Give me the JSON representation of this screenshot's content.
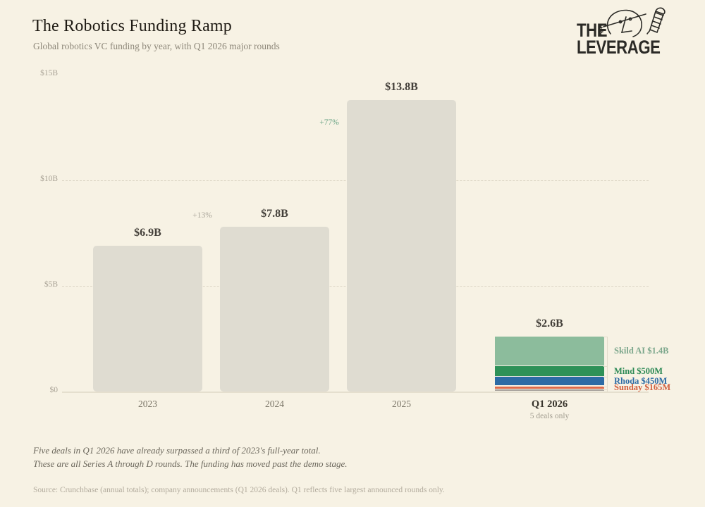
{
  "header": {
    "title": "The Robotics Funding Ramp",
    "subtitle": "Global robotics VC funding by year, with Q1 2026 major rounds"
  },
  "logo": {
    "line1": "THE",
    "line2": "LEVERAGE"
  },
  "chart_data": {
    "type": "bar",
    "title": "The Robotics Funding Ramp",
    "subtitle": "Global robotics VC funding by year, with Q1 2026 major rounds",
    "unit": "USD billions",
    "ylim": [
      0,
      15
    ],
    "grid": "dashed horizontal at $5B and $10B only",
    "yticks": [
      {
        "value": 0,
        "label": "$0"
      },
      {
        "value": 5,
        "label": "$5B"
      },
      {
        "value": 10,
        "label": "$10B"
      },
      {
        "value": 15,
        "label": "$15B"
      }
    ],
    "gridline_values": [
      5,
      10
    ],
    "categories": [
      "2023",
      "2024",
      "2025",
      "Q1 2026"
    ],
    "bars": [
      {
        "category": "2023",
        "total": 6.9,
        "value_label": "$6.9B",
        "color": "#dfdcd1"
      },
      {
        "category": "2024",
        "total": 7.8,
        "value_label": "$7.8B",
        "color": "#dfdcd1",
        "pct_change": "+13%",
        "pct_color": "#aaa59a"
      },
      {
        "category": "2025",
        "total": 13.8,
        "value_label": "$13.8B",
        "color": "#dfdcd1",
        "pct_change": "+77%",
        "pct_color": "#68a384"
      },
      {
        "category": "Q1 2026",
        "total": 2.6,
        "value_label": "$2.6B",
        "sublabel": "5 deals only",
        "stacked": true,
        "segments": [
          {
            "name": "Skild AI",
            "value": 1.4,
            "label": "Skild AI $1.4B",
            "color": "#8cbc9c",
            "label_color": "#7ca78c"
          },
          {
            "name": "Mind",
            "value": 0.5,
            "label": "Mind $500M",
            "color": "#2e9158",
            "label_color": "#2e8a56"
          },
          {
            "name": "Rhoda",
            "value": 0.45,
            "label": "Rhoda $450M",
            "color": "#2c6ba5",
            "label_color": "#2f6da5"
          },
          {
            "name": "Sunday",
            "value": 0.165,
            "label": "Sunday $165M",
            "color": "#dd6b4a",
            "label_color": "#d2603f"
          },
          {
            "name": "fifth deal (unlabeled)",
            "value": 0.085,
            "label": "",
            "color": "#a6a29c",
            "label_color": "#a6a29c"
          }
        ]
      }
    ]
  },
  "footer": {
    "note_line1": "Five deals in Q1 2026 have already surpassed a third of 2023's full-year total.",
    "note_line2": "These are all Series A through D rounds. The funding has moved past the demo stage.",
    "source": "Source: Crunchbase (annual totals); company announcements (Q1 2026 deals). Q1 reflects five largest announced rounds only."
  },
  "colors": {
    "background": "#f7f2e4",
    "annual_bar": "#dfdcd1",
    "accent_green": "#68a384",
    "title_text": "#1f1b14",
    "muted_text": "#8d8779"
  }
}
